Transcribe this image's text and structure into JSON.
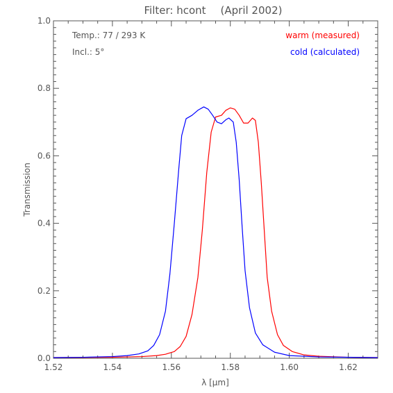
{
  "chart_data": {
    "type": "line",
    "title_left": "Filter: hcont",
    "title_right": "(April 2002)",
    "xlabel": "λ [μm]",
    "ylabel": "Transmission",
    "xlim": [
      1.52,
      1.63
    ],
    "ylim": [
      0.0,
      1.0
    ],
    "x_ticks": [
      1.52,
      1.54,
      1.56,
      1.58,
      1.6,
      1.62
    ],
    "x_tick_labels": [
      "1.52",
      "1.54",
      "1.56",
      "1.58",
      "1.60",
      "1.62"
    ],
    "y_ticks": [
      0.0,
      0.2,
      0.4,
      0.6,
      0.8,
      1.0
    ],
    "y_tick_labels": [
      "0.0",
      "0.2",
      "0.4",
      "0.6",
      "0.8",
      "1.0"
    ],
    "grid": false,
    "annotations": {
      "temp": "Temp.: 77 / 293 K",
      "incl": "Incl.: 5°"
    },
    "series": [
      {
        "name": "warm (measured)",
        "color": "#ff0000",
        "points": [
          [
            1.52,
            0.002
          ],
          [
            1.54,
            0.003
          ],
          [
            1.55,
            0.005
          ],
          [
            1.555,
            0.008
          ],
          [
            1.558,
            0.012
          ],
          [
            1.561,
            0.02
          ],
          [
            1.563,
            0.035
          ],
          [
            1.565,
            0.065
          ],
          [
            1.567,
            0.13
          ],
          [
            1.569,
            0.24
          ],
          [
            1.5705,
            0.38
          ],
          [
            1.572,
            0.55
          ],
          [
            1.5735,
            0.67
          ],
          [
            1.575,
            0.715
          ],
          [
            1.577,
            0.72
          ],
          [
            1.5785,
            0.735
          ],
          [
            1.58,
            0.742
          ],
          [
            1.5815,
            0.738
          ],
          [
            1.583,
            0.72
          ],
          [
            1.5845,
            0.697
          ],
          [
            1.586,
            0.697
          ],
          [
            1.5875,
            0.712
          ],
          [
            1.5885,
            0.705
          ],
          [
            1.5895,
            0.64
          ],
          [
            1.5905,
            0.52
          ],
          [
            1.5915,
            0.38
          ],
          [
            1.5925,
            0.24
          ],
          [
            1.594,
            0.14
          ],
          [
            1.596,
            0.07
          ],
          [
            1.598,
            0.038
          ],
          [
            1.601,
            0.02
          ],
          [
            1.605,
            0.01
          ],
          [
            1.61,
            0.006
          ],
          [
            1.62,
            0.003
          ],
          [
            1.63,
            0.002
          ]
        ]
      },
      {
        "name": "cold (calculated)",
        "color": "#0000ff",
        "points": [
          [
            1.52,
            0.002
          ],
          [
            1.53,
            0.003
          ],
          [
            1.54,
            0.005
          ],
          [
            1.545,
            0.008
          ],
          [
            1.549,
            0.013
          ],
          [
            1.552,
            0.022
          ],
          [
            1.554,
            0.038
          ],
          [
            1.556,
            0.07
          ],
          [
            1.558,
            0.14
          ],
          [
            1.5595,
            0.25
          ],
          [
            1.561,
            0.4
          ],
          [
            1.5625,
            0.56
          ],
          [
            1.5635,
            0.66
          ],
          [
            1.565,
            0.71
          ],
          [
            1.567,
            0.72
          ],
          [
            1.569,
            0.735
          ],
          [
            1.571,
            0.745
          ],
          [
            1.5725,
            0.738
          ],
          [
            1.574,
            0.72
          ],
          [
            1.5755,
            0.7
          ],
          [
            1.577,
            0.695
          ],
          [
            1.5785,
            0.707
          ],
          [
            1.5795,
            0.712
          ],
          [
            1.581,
            0.7
          ],
          [
            1.582,
            0.64
          ],
          [
            1.583,
            0.53
          ],
          [
            1.584,
            0.39
          ],
          [
            1.585,
            0.26
          ],
          [
            1.5865,
            0.15
          ],
          [
            1.5885,
            0.075
          ],
          [
            1.591,
            0.04
          ],
          [
            1.595,
            0.018
          ],
          [
            1.6,
            0.008
          ],
          [
            1.61,
            0.004
          ],
          [
            1.63,
            0.002
          ]
        ]
      }
    ]
  }
}
